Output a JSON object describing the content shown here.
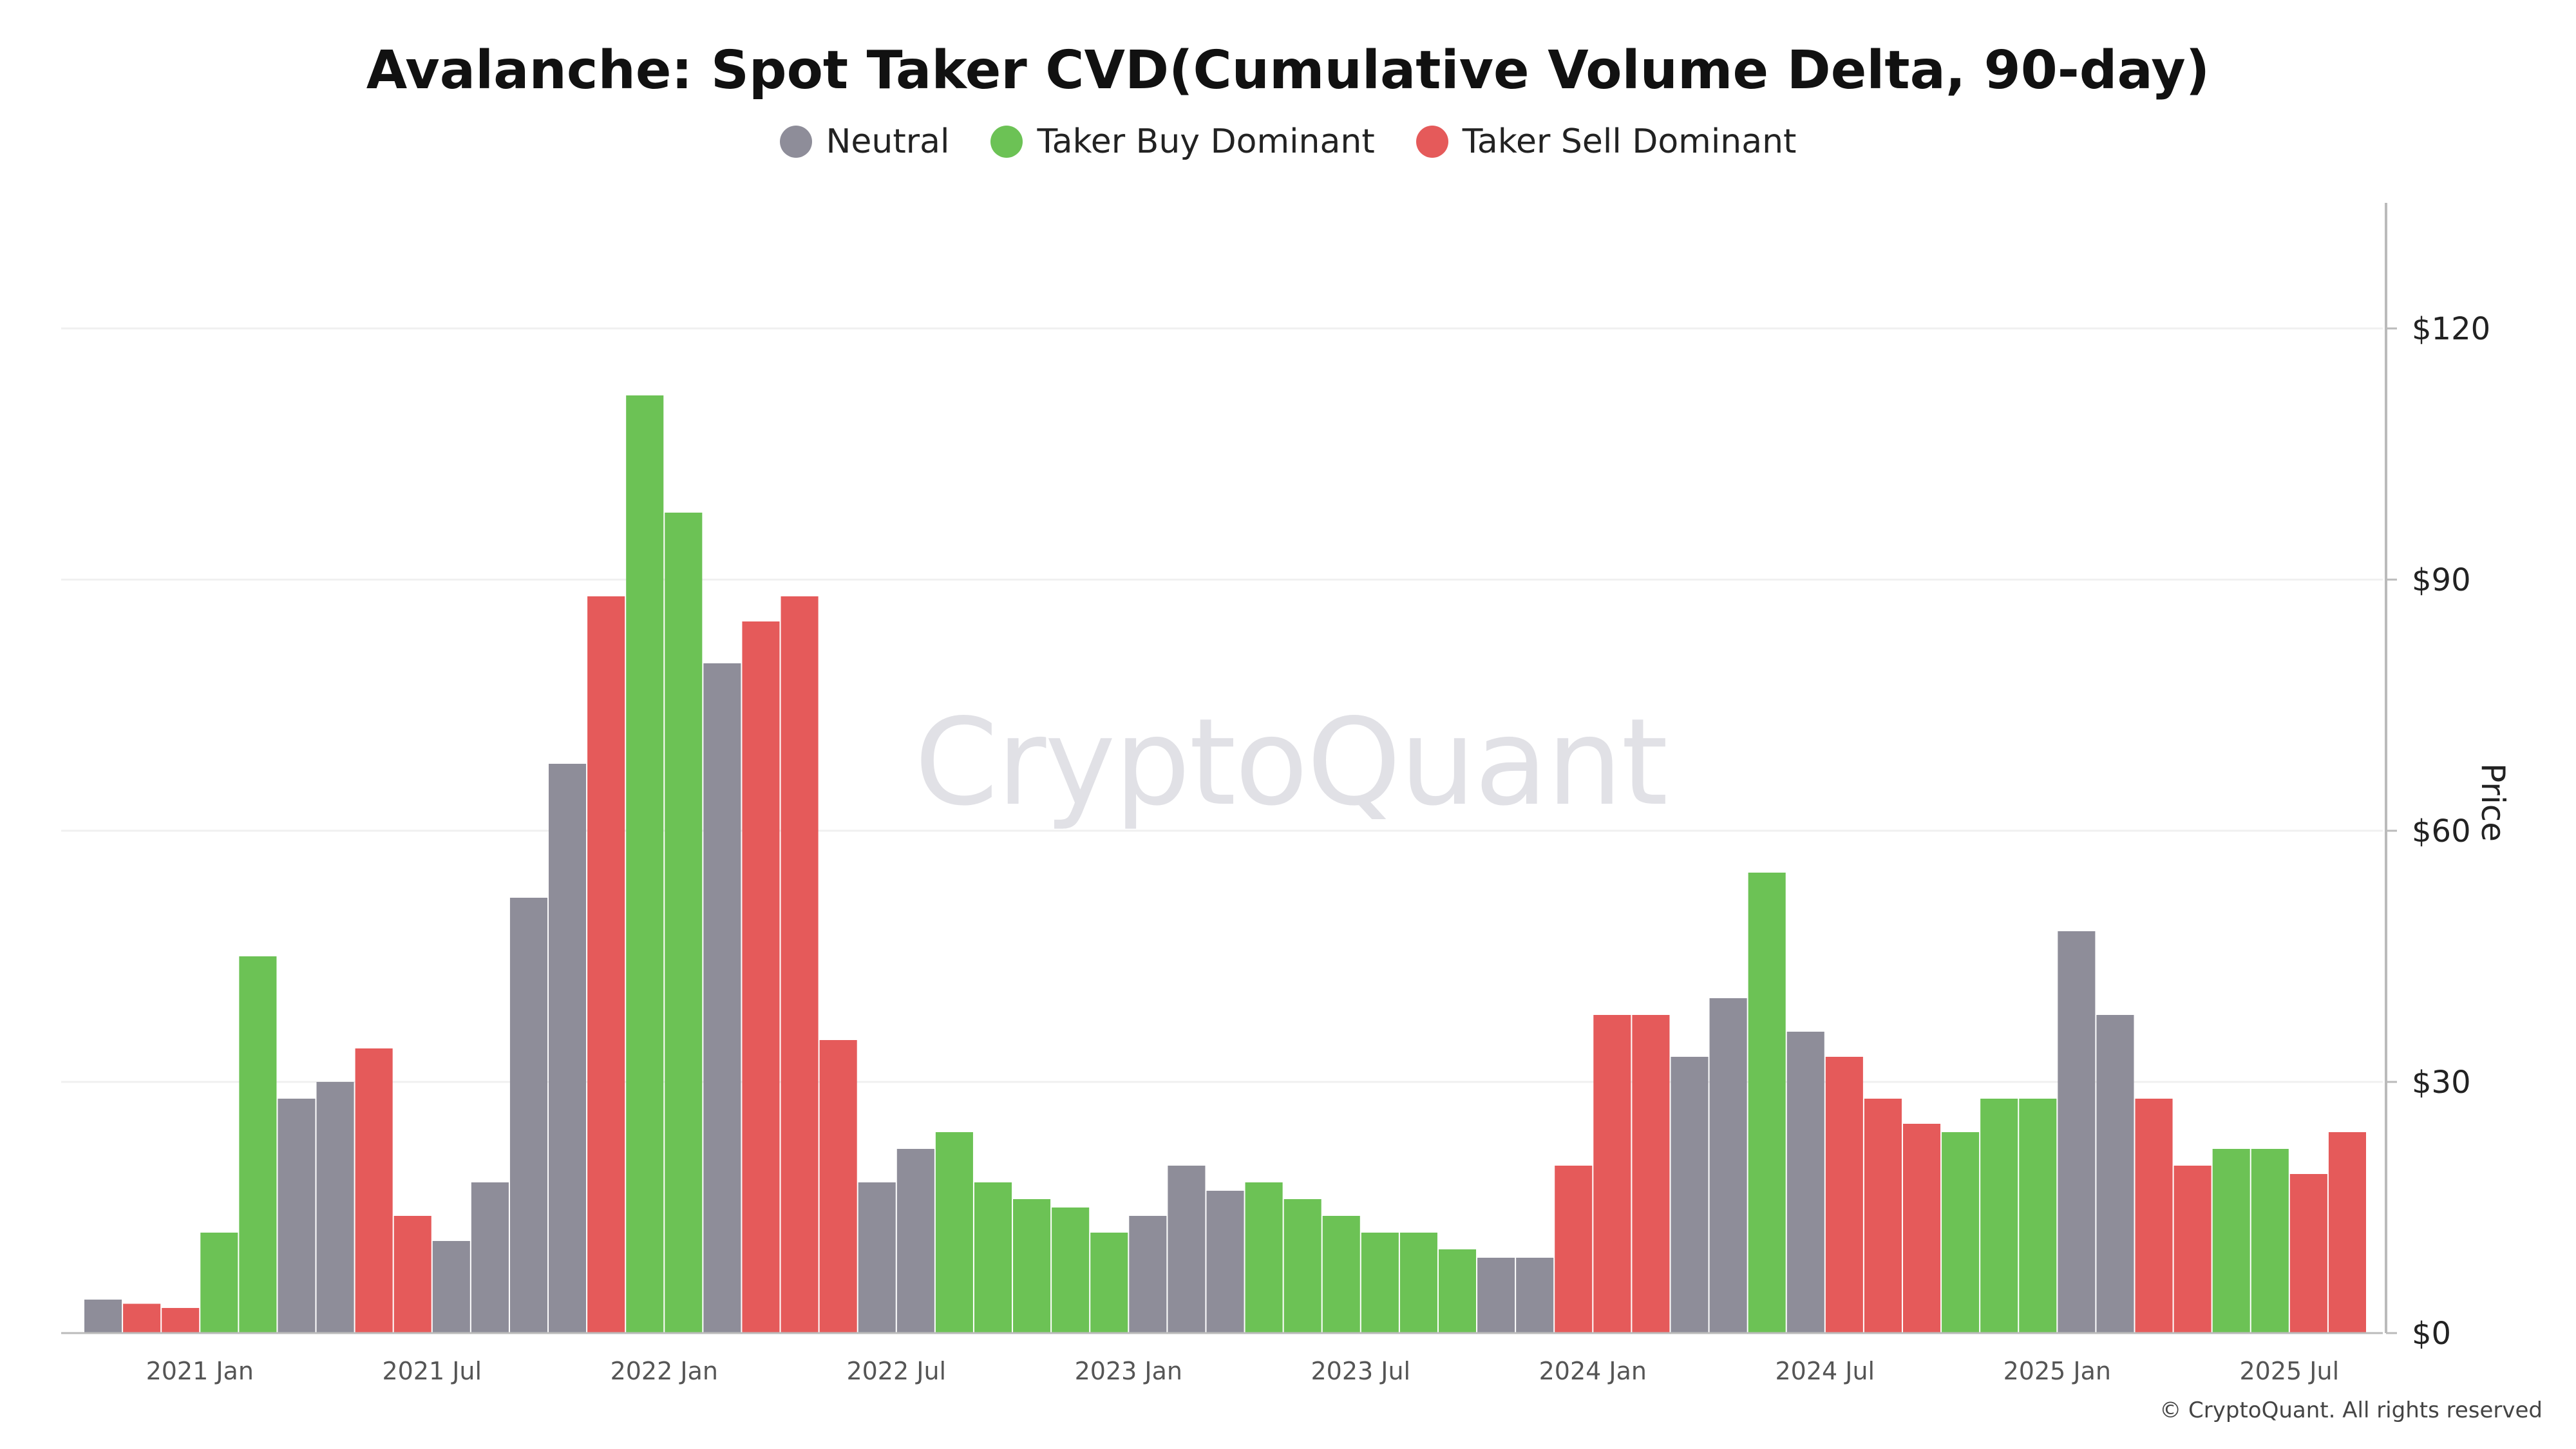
{
  "chart_data": {
    "type": "bar",
    "title": "Avalanche: Spot Taker CVD(Cumulative Volume Delta, 90-day)",
    "ylabel": "Price",
    "ylim": [
      0,
      135
    ],
    "y_ticks": [
      {
        "value": 0,
        "label": "$0"
      },
      {
        "value": 30,
        "label": "$30"
      },
      {
        "value": 60,
        "label": "$60"
      },
      {
        "value": 90,
        "label": "$90"
      },
      {
        "value": 120,
        "label": "$120"
      }
    ],
    "x_ticks": [
      "2021 Jan",
      "2021 Jul",
      "2022 Jan",
      "2022 Jul",
      "2023 Jan",
      "2023 Jul",
      "2024 Jan",
      "2024 Jul",
      "2025 Jan",
      "2025 Jul"
    ],
    "grid": true,
    "legend_position": "top-center",
    "colors": {
      "Neutral": "#8e8d99",
      "Taker Buy Dominant": "#6cc255",
      "Taker Sell Dominant": "#e55a5a"
    },
    "series": [
      {
        "name": "Neutral"
      },
      {
        "name": "Taker Buy Dominant"
      },
      {
        "name": "Taker Sell Dominant"
      }
    ],
    "months": [
      "2020-10",
      "2020-11",
      "2020-12",
      "2021-01",
      "2021-02",
      "2021-03",
      "2021-04",
      "2021-05",
      "2021-06",
      "2021-07",
      "2021-08",
      "2021-09",
      "2021-10",
      "2021-11",
      "2021-12",
      "2022-01",
      "2022-02",
      "2022-03",
      "2022-04",
      "2022-05",
      "2022-06",
      "2022-07",
      "2022-08",
      "2022-09",
      "2022-10",
      "2022-11",
      "2022-12",
      "2023-01",
      "2023-02",
      "2023-03",
      "2023-04",
      "2023-05",
      "2023-06",
      "2023-07",
      "2023-08",
      "2023-09",
      "2023-10",
      "2023-11",
      "2023-12",
      "2024-01",
      "2024-02",
      "2024-03",
      "2024-04",
      "2024-05",
      "2024-06",
      "2024-07",
      "2024-08",
      "2024-09",
      "2024-10",
      "2024-11",
      "2024-12",
      "2025-01",
      "2025-02",
      "2025-03",
      "2025-04",
      "2025-05",
      "2025-06",
      "2025-07",
      "2025-08"
    ],
    "price": [
      4,
      3.5,
      3,
      12,
      45,
      28,
      30,
      34,
      14,
      11,
      18,
      52,
      68,
      88,
      112,
      98,
      80,
      85,
      88,
      35,
      18,
      22,
      24,
      18,
      16,
      15,
      12,
      14,
      20,
      17,
      18,
      16,
      14,
      12,
      12,
      10,
      9,
      9,
      20,
      38,
      38,
      33,
      40,
      55,
      36,
      33,
      28,
      25,
      24,
      28,
      28,
      48,
      38,
      28,
      20,
      22,
      22,
      19,
      24
    ],
    "status": [
      "Neutral",
      "Taker Sell Dominant",
      "Taker Sell Dominant",
      "Taker Buy Dominant",
      "Taker Buy Dominant",
      "Neutral",
      "Neutral",
      "Taker Sell Dominant",
      "Taker Sell Dominant",
      "Neutral",
      "Neutral",
      "Neutral",
      "Neutral",
      "Taker Sell Dominant",
      "Taker Buy Dominant",
      "Taker Buy Dominant",
      "Neutral",
      "Taker Sell Dominant",
      "Taker Sell Dominant",
      "Taker Sell Dominant",
      "Neutral",
      "Neutral",
      "Taker Buy Dominant",
      "Taker Buy Dominant",
      "Taker Buy Dominant",
      "Taker Buy Dominant",
      "Taker Buy Dominant",
      "Neutral",
      "Neutral",
      "Neutral",
      "Taker Buy Dominant",
      "Taker Buy Dominant",
      "Taker Buy Dominant",
      "Taker Buy Dominant",
      "Taker Buy Dominant",
      "Taker Buy Dominant",
      "Neutral",
      "Neutral",
      "Taker Sell Dominant",
      "Taker Sell Dominant",
      "Taker Sell Dominant",
      "Neutral",
      "Neutral",
      "Taker Buy Dominant",
      "Neutral",
      "Taker Sell Dominant",
      "Taker Sell Dominant",
      "Taker Sell Dominant",
      "Taker Buy Dominant",
      "Taker Buy Dominant",
      "Taker Buy Dominant",
      "Neutral",
      "Neutral",
      "Taker Sell Dominant",
      "Taker Sell Dominant",
      "Taker Buy Dominant",
      "Taker Buy Dominant",
      "Taker Sell Dominant",
      "Taker Sell Dominant"
    ]
  },
  "watermark": "CryptoQuant",
  "copyright": "© CryptoQuant. All rights reserved"
}
